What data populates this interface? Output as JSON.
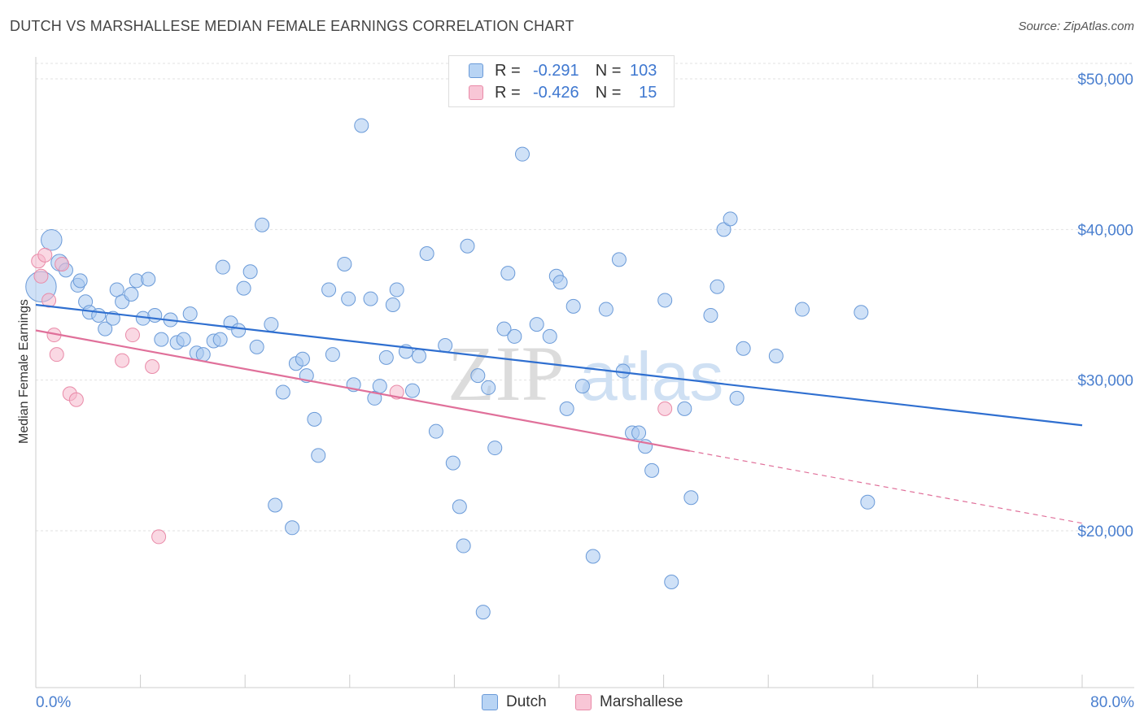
{
  "header": {
    "title": "DUTCH VS MARSHALLESE MEDIAN FEMALE EARNINGS CORRELATION CHART",
    "source": "Source: ZipAtlas.com"
  },
  "legend": {
    "rows": [
      {
        "r_label": "R =",
        "r_value": "-0.291",
        "n_label": "N =",
        "n_value": "103",
        "color": "#a8c8f0"
      },
      {
        "r_label": "R =",
        "r_value": "-0.426",
        "n_label": "N =",
        "n_value": "15",
        "color": "#f5b8cc"
      }
    ]
  },
  "bottom_legend": {
    "items": [
      {
        "label": "Dutch",
        "color": "#a8c8f0"
      },
      {
        "label": "Marshallese",
        "color": "#f5b8cc"
      }
    ]
  },
  "watermark": {
    "part1": "ZIP",
    "part2": "atlas"
  },
  "chart_data": {
    "type": "scatter",
    "title": "DUTCH VS MARSHALLESE MEDIAN FEMALE EARNINGS CORRELATION CHART",
    "xlabel": "",
    "ylabel": "Median Female Earnings",
    "xlim": [
      0,
      80
    ],
    "ylim": [
      10000,
      51000
    ],
    "x_tick_labels": [
      "0.0%",
      "80.0%"
    ],
    "y_ticks": [
      {
        "value": 20000,
        "label": "$20,000"
      },
      {
        "value": 30000,
        "label": "$30,000"
      },
      {
        "value": 40000,
        "label": "$40,000"
      },
      {
        "value": 50000,
        "label": "$50,000"
      }
    ],
    "grid": true,
    "legend_position": "top-center",
    "series": [
      {
        "name": "Dutch",
        "color": "#a8c8f0",
        "stroke": "#6a9ad8",
        "line_color": "#2f6fd0",
        "trend": {
          "x": [
            0,
            80
          ],
          "y": [
            35000,
            27000
          ],
          "style": "solid"
        },
        "points": [
          [
            0.4,
            36200,
            2.2
          ],
          [
            1.2,
            39300,
            1.5
          ],
          [
            1.8,
            37800,
            1.2
          ],
          [
            2.3,
            37300,
            1
          ],
          [
            3.2,
            36300,
            1
          ],
          [
            3.4,
            36600,
            1
          ],
          [
            3.8,
            35200,
            1
          ],
          [
            4.1,
            34500,
            1
          ],
          [
            4.8,
            34300,
            1
          ],
          [
            5.3,
            33400,
            1
          ],
          [
            5.9,
            34100,
            1
          ],
          [
            6.2,
            36000,
            1
          ],
          [
            6.6,
            35200,
            1
          ],
          [
            7.3,
            35700,
            1
          ],
          [
            7.7,
            36600,
            1
          ],
          [
            8.2,
            34100,
            1
          ],
          [
            8.6,
            36700,
            1
          ],
          [
            9.1,
            34300,
            1
          ],
          [
            9.6,
            32700,
            1
          ],
          [
            10.3,
            34000,
            1
          ],
          [
            10.8,
            32500,
            1
          ],
          [
            11.3,
            32700,
            1
          ],
          [
            11.8,
            34400,
            1
          ],
          [
            12.3,
            31800,
            1
          ],
          [
            12.8,
            31700,
            1
          ],
          [
            13.6,
            32600,
            1
          ],
          [
            14.1,
            32700,
            1
          ],
          [
            14.3,
            37500,
            1
          ],
          [
            14.9,
            33800,
            1
          ],
          [
            15.5,
            33300,
            1
          ],
          [
            15.9,
            36100,
            1
          ],
          [
            16.4,
            37200,
            1
          ],
          [
            16.9,
            32200,
            1
          ],
          [
            17.3,
            40300,
            1
          ],
          [
            18.0,
            33700,
            1
          ],
          [
            18.3,
            21700,
            1
          ],
          [
            18.9,
            29200,
            1
          ],
          [
            19.6,
            20200,
            1
          ],
          [
            19.9,
            31100,
            1
          ],
          [
            20.4,
            31400,
            1
          ],
          [
            20.7,
            30300,
            1
          ],
          [
            21.3,
            27400,
            1
          ],
          [
            21.6,
            25000,
            1
          ],
          [
            22.4,
            36000,
            1
          ],
          [
            22.7,
            31700,
            1
          ],
          [
            23.6,
            37700,
            1
          ],
          [
            23.9,
            35400,
            1
          ],
          [
            24.3,
            29700,
            1
          ],
          [
            24.9,
            46900,
            1
          ],
          [
            25.6,
            35400,
            1
          ],
          [
            25.9,
            28800,
            1
          ],
          [
            26.3,
            29600,
            1
          ],
          [
            26.8,
            31500,
            1
          ],
          [
            27.3,
            35000,
            1
          ],
          [
            27.6,
            36000,
            1
          ],
          [
            28.3,
            31900,
            1
          ],
          [
            28.8,
            29300,
            1
          ],
          [
            29.3,
            31600,
            1
          ],
          [
            29.9,
            38400,
            1
          ],
          [
            30.6,
            26600,
            1
          ],
          [
            31.3,
            32300,
            1
          ],
          [
            31.9,
            24500,
            1
          ],
          [
            32.4,
            21600,
            1
          ],
          [
            32.7,
            19000,
            1
          ],
          [
            33.0,
            38900,
            1
          ],
          [
            33.8,
            30300,
            1
          ],
          [
            34.2,
            14600,
            1
          ],
          [
            34.6,
            29500,
            1
          ],
          [
            35.1,
            25500,
            1
          ],
          [
            35.8,
            33400,
            1
          ],
          [
            36.1,
            37100,
            1
          ],
          [
            36.6,
            32900,
            1
          ],
          [
            37.2,
            45000,
            1
          ],
          [
            38.3,
            33700,
            1
          ],
          [
            39.3,
            32900,
            1
          ],
          [
            39.8,
            36900,
            1
          ],
          [
            40.1,
            36500,
            1
          ],
          [
            40.6,
            28100,
            1
          ],
          [
            41.1,
            34900,
            1
          ],
          [
            41.8,
            29600,
            1
          ],
          [
            42.6,
            18300,
            1
          ],
          [
            43.6,
            34700,
            1
          ],
          [
            44.6,
            38000,
            1
          ],
          [
            44.9,
            30600,
            1
          ],
          [
            45.6,
            26500,
            1
          ],
          [
            46.1,
            26500,
            1
          ],
          [
            46.6,
            25600,
            1
          ],
          [
            47.1,
            24000,
            1
          ],
          [
            48.1,
            35300,
            1
          ],
          [
            48.6,
            16600,
            1
          ],
          [
            49.6,
            28100,
            1
          ],
          [
            50.1,
            22200,
            1
          ],
          [
            51.6,
            34300,
            1
          ],
          [
            52.1,
            36200,
            1
          ],
          [
            52.6,
            40000,
            1
          ],
          [
            53.1,
            40700,
            1
          ],
          [
            53.6,
            28800,
            1
          ],
          [
            54.1,
            32100,
            1
          ],
          [
            56.6,
            31600,
            1
          ],
          [
            58.6,
            34700,
            1
          ],
          [
            63.1,
            34500,
            1
          ],
          [
            63.6,
            21900,
            1
          ]
        ]
      },
      {
        "name": "Marshallese",
        "color": "#f5b8cc",
        "stroke": "#e98aa8",
        "line_color": "#e0709a",
        "trend": {
          "x": [
            0,
            50
          ],
          "y": [
            33300,
            25300
          ],
          "style": "solid"
        },
        "trend_extension": {
          "x": [
            50,
            80
          ],
          "y": [
            25300,
            20500
          ],
          "style": "dashed"
        },
        "points": [
          [
            0.2,
            37900,
            1
          ],
          [
            0.4,
            36900,
            1
          ],
          [
            0.7,
            38300,
            1
          ],
          [
            1.0,
            35300,
            1
          ],
          [
            1.4,
            33000,
            1
          ],
          [
            1.6,
            31700,
            1
          ],
          [
            2.0,
            37700,
            1
          ],
          [
            2.6,
            29100,
            1
          ],
          [
            3.1,
            28700,
            1
          ],
          [
            6.6,
            31300,
            1
          ],
          [
            7.4,
            33000,
            1
          ],
          [
            8.9,
            30900,
            1
          ],
          [
            9.4,
            19600,
            1
          ],
          [
            27.6,
            29200,
            1
          ],
          [
            48.1,
            28100,
            1
          ]
        ]
      }
    ]
  }
}
